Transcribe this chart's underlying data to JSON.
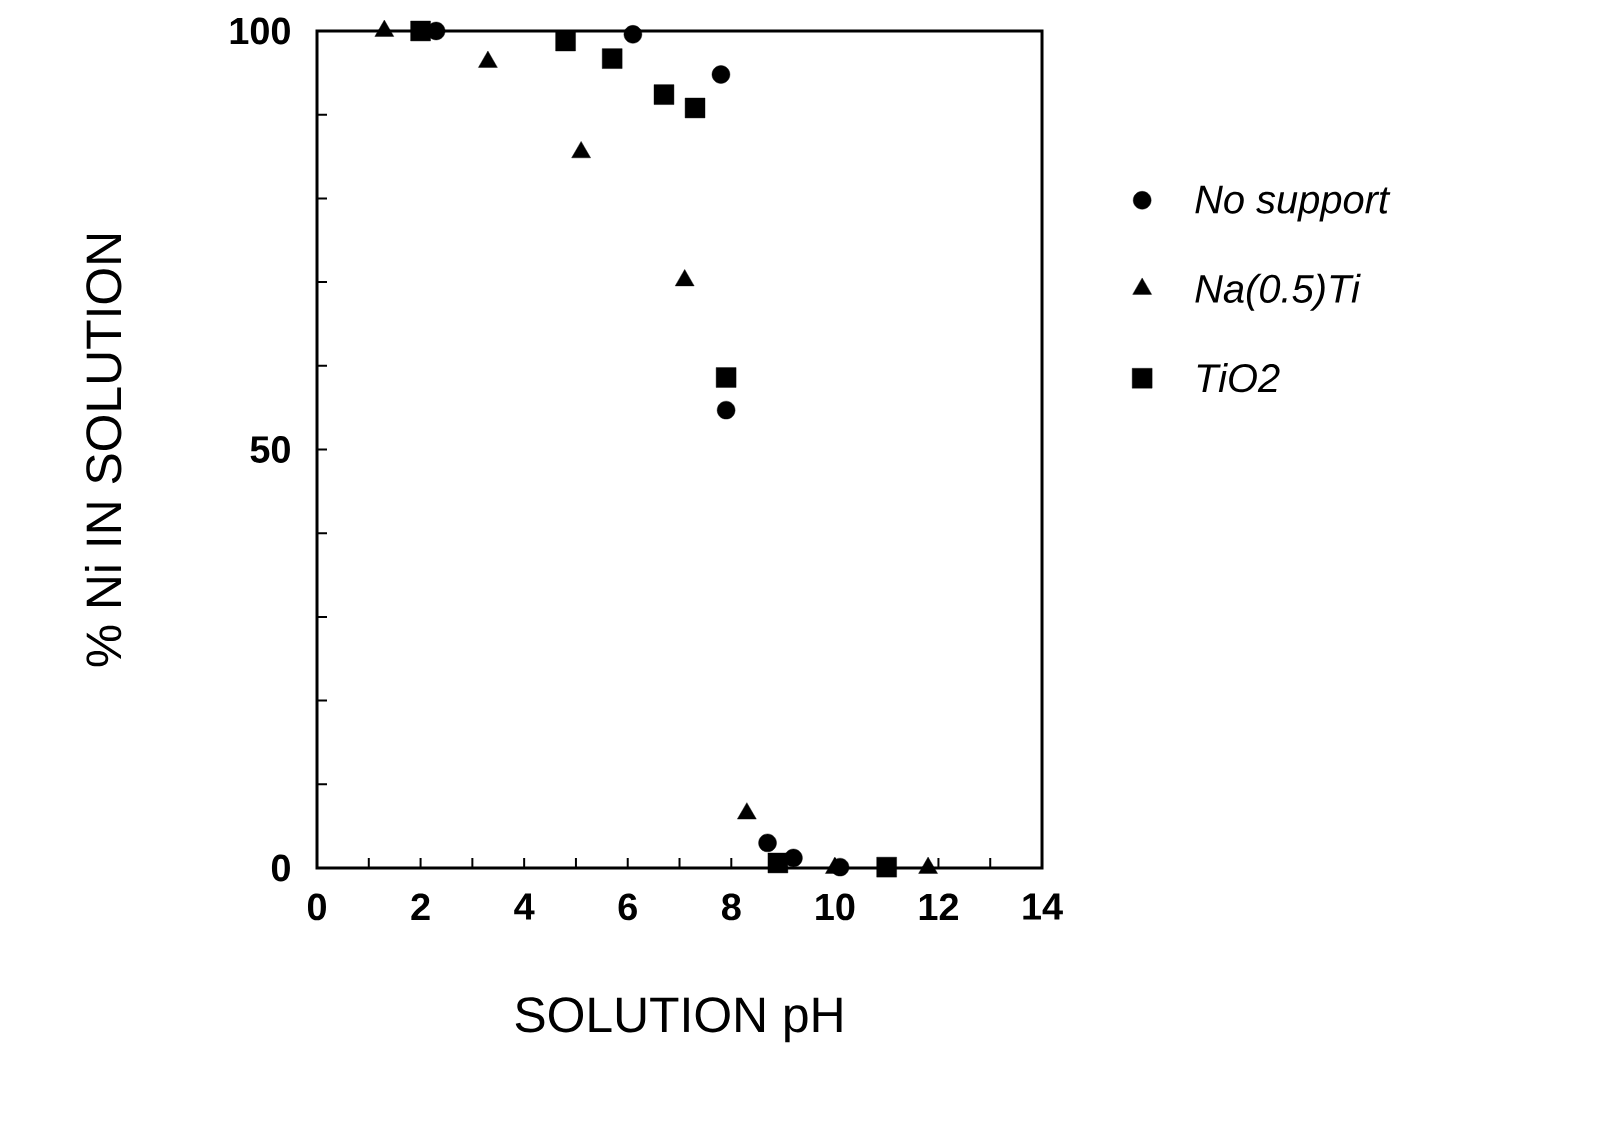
{
  "chart_data": {
    "type": "scatter",
    "xlabel": "SOLUTION pH",
    "ylabel": "% Ni IN SOLUTION",
    "xlim": [
      0,
      14
    ],
    "ylim": [
      0,
      100
    ],
    "xticks": [
      0,
      {
        "value": 1,
        "label": null
      },
      2,
      {
        "value": 3,
        "label": null
      },
      4,
      {
        "value": 5,
        "label": null
      },
      6,
      {
        "value": 7,
        "label": null
      },
      8,
      {
        "value": 9,
        "label": null
      },
      10,
      {
        "value": 11,
        "label": null
      },
      12,
      {
        "value": 13,
        "label": null
      },
      14
    ],
    "yticks": [
      0,
      {
        "value": 10,
        "label": null
      },
      {
        "value": 20,
        "label": null
      },
      {
        "value": 30,
        "label": null
      },
      {
        "value": 40,
        "label": null
      },
      50,
      {
        "value": 60,
        "label": null
      },
      {
        "value": 70,
        "label": null
      },
      {
        "value": 80,
        "label": null
      },
      {
        "value": 90,
        "label": null
      },
      100
    ],
    "legend": "right",
    "grid": false,
    "series": [
      {
        "name": "*No  support*",
        "color": "#000000",
        "marker": "circle",
        "x": [
          2.3,
          6.1,
          7.8,
          7.9,
          8.7,
          9.2,
          10.1
        ],
        "values": [
          100,
          99.6,
          94.8,
          54.7,
          3,
          1.2,
          0.1
        ]
      },
      {
        "name": "*Na(0.5)Ti*",
        "color": "#000000",
        "marker": "triangle",
        "x": [
          1.3,
          3.3,
          5.1,
          7.1,
          8.3,
          10.0,
          11.8
        ],
        "values": [
          100,
          96.3,
          85.5,
          70.2,
          6.5,
          0,
          0
        ]
      },
      {
        "name": "*TiO2*",
        "color": "#000000",
        "marker": "square",
        "x": [
          2.0,
          4.8,
          5.7,
          6.7,
          7.3,
          7.9,
          8.9,
          11.0
        ],
        "values": [
          100,
          98.8,
          96.7,
          92.4,
          90.8,
          58.6,
          0.6,
          0.1
        ]
      }
    ]
  }
}
